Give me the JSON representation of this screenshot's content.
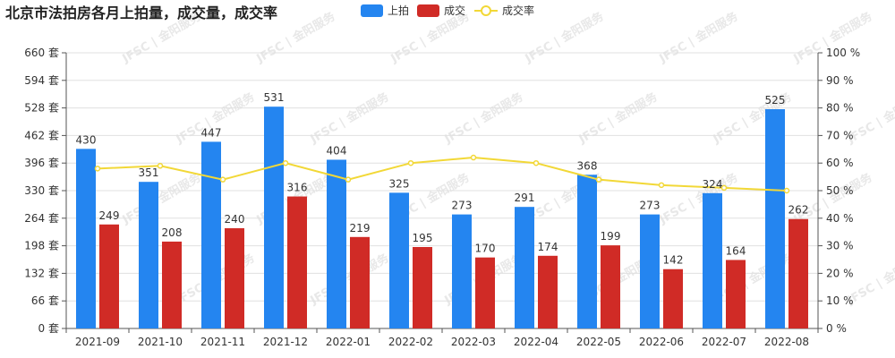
{
  "chart_data": {
    "type": "bar",
    "title": "北京市法拍房各月上拍量，成交量，成交率",
    "categories": [
      "2021-09",
      "2021-10",
      "2021-11",
      "2021-12",
      "2022-01",
      "2022-02",
      "2022-03",
      "2022-04",
      "2022-05",
      "2022-06",
      "2022-07",
      "2022-08"
    ],
    "series": [
      {
        "name": "上拍",
        "type": "bar",
        "color": "#2485f0",
        "axis": "left",
        "values": [
          430,
          351,
          447,
          531,
          404,
          325,
          273,
          291,
          368,
          273,
          324,
          525
        ]
      },
      {
        "name": "成交",
        "type": "bar",
        "color": "#d02b26",
        "axis": "left",
        "values": [
          249,
          208,
          240,
          316,
          219,
          195,
          170,
          174,
          199,
          142,
          164,
          262
        ]
      },
      {
        "name": "成交率",
        "type": "line",
        "color": "#f2d837",
        "axis": "right",
        "values": [
          58,
          59,
          54,
          60,
          54,
          60,
          62,
          60,
          54,
          52,
          51,
          50
        ]
      }
    ],
    "left_axis": {
      "ticks": [
        "0 套",
        "66 套",
        "132 套",
        "198 套",
        "264 套",
        "330 套",
        "396 套",
        "462 套",
        "528 套",
        "594 套",
        "660 套"
      ],
      "ylim": [
        0,
        660
      ]
    },
    "right_axis": {
      "ticks": [
        "0 %",
        "10 %",
        "20 %",
        "30 %",
        "40 %",
        "50 %",
        "60 %",
        "70 %",
        "80 %",
        "90 %",
        "100 %"
      ],
      "ylim": [
        0,
        100
      ]
    },
    "legend": [
      "上拍",
      "成交",
      "成交率"
    ],
    "watermark": "JFSC | 金阳服务"
  }
}
